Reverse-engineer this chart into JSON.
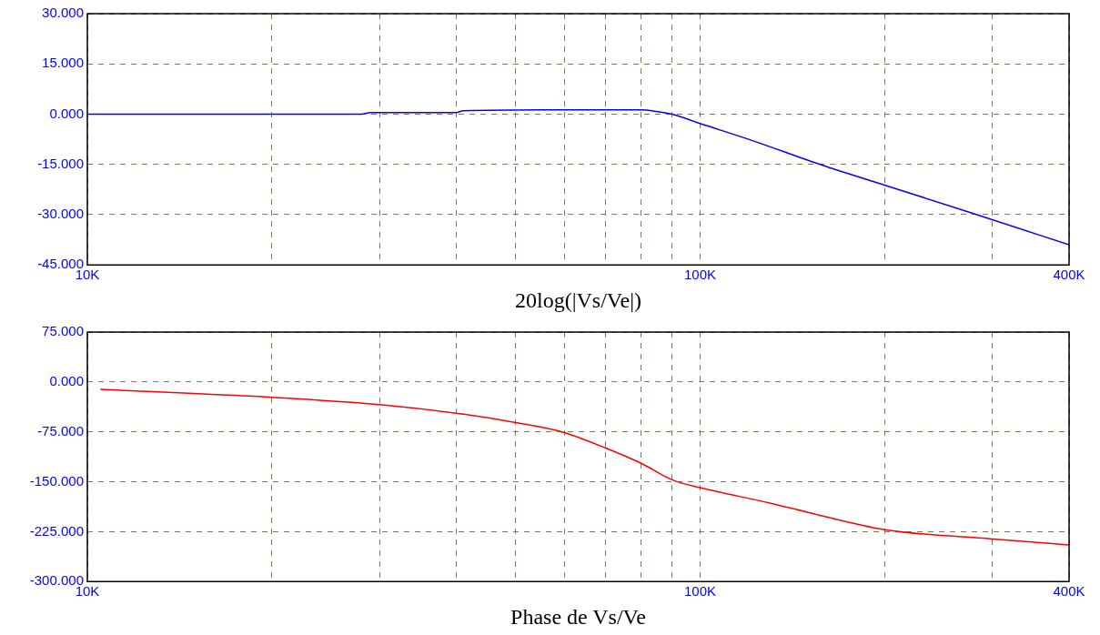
{
  "chart_data": [
    {
      "type": "line",
      "xlabel": "20log(|Vs/Ve|)",
      "log": "x",
      "grid": true,
      "marker": "none",
      "line_style": "solid",
      "x": [
        10000,
        20000,
        28000,
        29000,
        40000,
        41000,
        50000,
        60000,
        80000,
        85000,
        90000,
        100000,
        120000,
        157000,
        200000,
        283000,
        400000
      ],
      "series": [
        {
          "color": "#0000ff",
          "values": [
            0,
            0,
            0,
            0.5,
            0.5,
            1,
            1.2,
            1.3,
            1.3,
            0.8,
            0,
            -2.8,
            -7.5,
            -15,
            -21.2,
            -30,
            -39
          ]
        }
      ],
      "xlim": [
        10000,
        400000
      ],
      "xticks": [
        {
          "value": 10000,
          "label": "10K"
        },
        {
          "value": 20000,
          "label": null
        },
        {
          "value": 30000,
          "label": null
        },
        {
          "value": 40000,
          "label": null
        },
        {
          "value": 50000,
          "label": null
        },
        {
          "value": 60000,
          "label": null
        },
        {
          "value": 70000,
          "label": null
        },
        {
          "value": 80000,
          "label": null
        },
        {
          "value": 90000,
          "label": null
        },
        {
          "value": 100000,
          "label": "100K"
        },
        {
          "value": 200000,
          "label": null
        },
        {
          "value": 300000,
          "label": null
        },
        {
          "value": 400000,
          "label": "400K"
        }
      ],
      "ylim": [
        -45,
        30
      ],
      "yticks": [
        {
          "value": -45,
          "label": "-45.000"
        },
        {
          "value": -30,
          "label": "-30.000"
        },
        {
          "value": -15,
          "label": "-15.000"
        },
        {
          "value": 0,
          "label": "0.000"
        },
        {
          "value": 15,
          "label": "15.000"
        },
        {
          "value": 30,
          "label": "30.000"
        }
      ]
    },
    {
      "type": "line",
      "xlabel": "Phase de Vs/Ve",
      "log": "x",
      "grid": true,
      "marker": "none",
      "line_style": "solid",
      "x": [
        10500,
        20000,
        30000,
        40000,
        50000,
        60000,
        70000,
        80000,
        90000,
        100000,
        130000,
        150000,
        200000,
        300000,
        400000
      ],
      "series": [
        {
          "color": "#ff0000",
          "values": [
            -11,
            -23,
            -34,
            -47,
            -61,
            -76,
            -99,
            -122,
            -147,
            -159,
            -182,
            -196,
            -222,
            -236,
            -245
          ]
        }
      ],
      "xlim": [
        10000,
        400000
      ],
      "xticks": [
        {
          "value": 10000,
          "label": "10K"
        },
        {
          "value": 20000,
          "label": null
        },
        {
          "value": 30000,
          "label": null
        },
        {
          "value": 40000,
          "label": null
        },
        {
          "value": 50000,
          "label": null
        },
        {
          "value": 60000,
          "label": null
        },
        {
          "value": 70000,
          "label": null
        },
        {
          "value": 80000,
          "label": null
        },
        {
          "value": 90000,
          "label": null
        },
        {
          "value": 100000,
          "label": "100K"
        },
        {
          "value": 200000,
          "label": null
        },
        {
          "value": 300000,
          "label": null
        },
        {
          "value": 400000,
          "label": "400K"
        }
      ],
      "ylim": [
        -300,
        75
      ],
      "yticks": [
        {
          "value": -300,
          "label": "-300.000"
        },
        {
          "value": -225,
          "label": "-225.000"
        },
        {
          "value": -150,
          "label": "-150.000"
        },
        {
          "value": -75,
          "label": "-75.000"
        },
        {
          "value": 0,
          "label": "0.000"
        },
        {
          "value": 75,
          "label": "75.000"
        }
      ]
    }
  ]
}
